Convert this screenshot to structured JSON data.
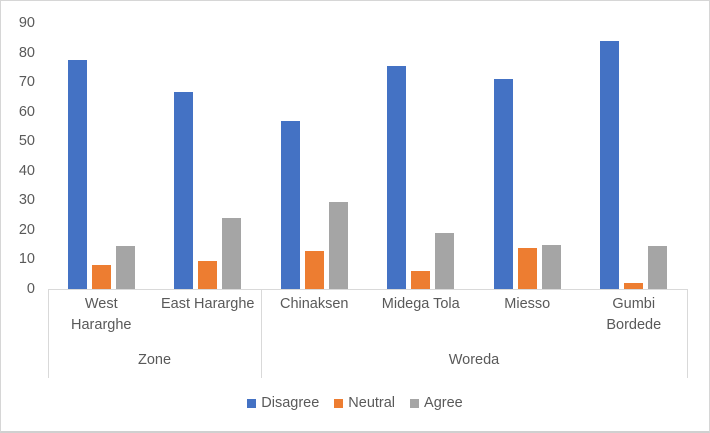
{
  "chart_data": {
    "type": "bar",
    "title": "",
    "xlabel": "",
    "ylabel": "",
    "grid": false,
    "legend_position": "bottom",
    "categories": [
      "West\nHararghe",
      "East Hararghe",
      "Chinaksen",
      "Midega Tola",
      "Miesso",
      "Gumbi\nBordede"
    ],
    "category_groups": [
      {
        "label": "Zone",
        "start": 0,
        "end": 2
      },
      {
        "label": "Woreda",
        "start": 2,
        "end": 6
      }
    ],
    "series": [
      {
        "name": "Disagree",
        "color": "#4472C4",
        "values": [
          77.5,
          66.5,
          57,
          75.5,
          71,
          84
        ]
      },
      {
        "name": "Neutral",
        "color": "#ED7D31",
        "values": [
          8,
          9.5,
          13,
          6,
          14,
          2
        ]
      },
      {
        "name": "Agree",
        "color": "#A5A5A5",
        "values": [
          14.5,
          24,
          29.5,
          19,
          15,
          14.5
        ]
      }
    ],
    "y_axis": {
      "min": 0,
      "max": 90,
      "step": 10,
      "tick_labels": [
        "0",
        "10",
        "20",
        "30",
        "40",
        "50",
        "60",
        "70",
        "80",
        "90"
      ]
    }
  },
  "colors": {
    "background": "#FFFFFF",
    "border": "#D6D6D6",
    "axis_line": "#D9D9D9",
    "text": "#595959"
  }
}
